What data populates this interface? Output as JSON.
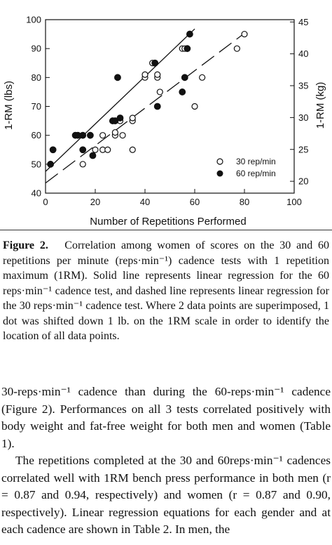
{
  "chart_data": {
    "type": "scatter",
    "xlabel": "Number of Repetitions Performed",
    "ylabel_left": "1-RM (lbs)",
    "ylabel_right": "1-RM (kg)",
    "xlim": [
      0,
      100
    ],
    "ylim": [
      40,
      100
    ],
    "ylim_right_kg": [
      18.14,
      45.36
    ],
    "x_ticks": [
      "0",
      "20",
      "40",
      "60",
      "80",
      "100"
    ],
    "y_ticks": [
      "40",
      "50",
      "60",
      "70",
      "80",
      "90",
      "100"
    ],
    "y_right_ticks": [
      "20",
      "25",
      "30",
      "35",
      "40",
      "45"
    ],
    "grid": false,
    "legend_position": "bottom-right",
    "series": [
      {
        "name": "30 rep/min",
        "marker": "open-circle",
        "line": "dashed",
        "points": [
          [
            15,
            50
          ],
          [
            20,
            55
          ],
          [
            23,
            60
          ],
          [
            23,
            55
          ],
          [
            25,
            55
          ],
          [
            28,
            60
          ],
          [
            28,
            61
          ],
          [
            30,
            65
          ],
          [
            31,
            60
          ],
          [
            35,
            55
          ],
          [
            35,
            65
          ],
          [
            35,
            66
          ],
          [
            40,
            80
          ],
          [
            40,
            81
          ],
          [
            43,
            85
          ],
          [
            45,
            80
          ],
          [
            45,
            81
          ],
          [
            46,
            75
          ],
          [
            55,
            90
          ],
          [
            56,
            90
          ],
          [
            60,
            70
          ],
          [
            63,
            80
          ],
          [
            77,
            90
          ],
          [
            80,
            95
          ]
        ],
        "fit": [
          [
            0,
            43.5
          ],
          [
            80,
            95.3
          ]
        ]
      },
      {
        "name": "60 rep/min",
        "marker": "filled-circle",
        "line": "solid",
        "points": [
          [
            2,
            50
          ],
          [
            3,
            55
          ],
          [
            12,
            60
          ],
          [
            13,
            60
          ],
          [
            15,
            60
          ],
          [
            15,
            55
          ],
          [
            18,
            60
          ],
          [
            19,
            53
          ],
          [
            27,
            65
          ],
          [
            28,
            65
          ],
          [
            29,
            80
          ],
          [
            30,
            66
          ],
          [
            44,
            85
          ],
          [
            45,
            70
          ],
          [
            55,
            75
          ],
          [
            56,
            80
          ],
          [
            57,
            90
          ],
          [
            58,
            95
          ]
        ],
        "fit": [
          [
            0,
            47.5
          ],
          [
            60,
            96.8
          ]
        ]
      }
    ]
  },
  "caption": {
    "label": "Figure 2.",
    "text": "Correlation among women of scores on the 30 and 60 repetitions per minute (reps·min⁻¹) cadence tests with 1 repetition maximum (1RM). Solid line represents linear regression for the 60 reps·min⁻¹ cadence test, and dashed line represents linear regression for the 30 reps·min⁻¹ cadence test. Where 2 data points are superimposed, 1 dot was shifted down 1 lb. on the 1RM scale in order to identify the location of all data points."
  },
  "body": {
    "para1": "30-reps·min⁻¹ cadence than during the 60-reps·min⁻¹ cadence (Figure 2). Performances on all 3 tests correlated positively with body weight and fat-free weight for both men and women (Table 1).",
    "para2": "The repetitions completed at the 30 and 60reps·min⁻¹ cadences correlated well with 1RM bench press performance in both men (r = 0.87 and 0.94, respectively) and women (r = 0.87 and 0.90, respectively). Linear regression equations for each gender and at each cadence are shown in Table 2. In men, the"
  },
  "colors": {
    "ink": "#111111",
    "background": "#ffffff"
  }
}
